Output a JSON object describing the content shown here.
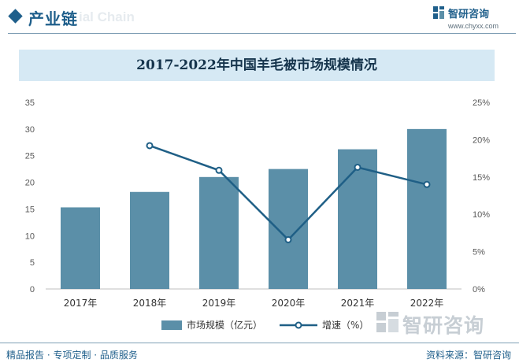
{
  "header": {
    "title": "产业链",
    "ghost_text": "ial Chain",
    "brand_name": "智研咨询",
    "brand_url": "www.chyxx.com",
    "brand_icon": "zhiyan-logo-icon"
  },
  "watermark": {
    "text": "智研咨询"
  },
  "footer": {
    "left": "精品报告 · 专项定制 · 品质服务",
    "right": "资料来源：智研咨询"
  },
  "colors": {
    "bar": "#5b8fa8",
    "line": "#1f5f86",
    "accent": "#1f5f8b"
  },
  "chart_data": {
    "type": "bar",
    "title": "2017-2022年中国羊毛被市场规模情况",
    "categories": [
      "2017年",
      "2018年",
      "2019年",
      "2020年",
      "2021年",
      "2022年"
    ],
    "series": [
      {
        "name": "市场规模（亿元）",
        "type": "bar",
        "axis": "left",
        "values": [
          15.3,
          18.2,
          21.0,
          22.5,
          26.2,
          30.0
        ]
      },
      {
        "name": "增速（%）",
        "type": "line",
        "axis": "right",
        "values": [
          null,
          19.2,
          15.9,
          6.6,
          16.3,
          14.0
        ]
      }
    ],
    "y_left": {
      "min": 0,
      "max": 35,
      "ticks": [
        "0",
        "5",
        "10",
        "15",
        "20",
        "25",
        "30",
        "35"
      ]
    },
    "y_right": {
      "min": 0,
      "max": 25,
      "ticks": [
        "0%",
        "5%",
        "10%",
        "15%",
        "20%",
        "25%"
      ]
    },
    "grid": false,
    "legend_position": "bottom"
  }
}
